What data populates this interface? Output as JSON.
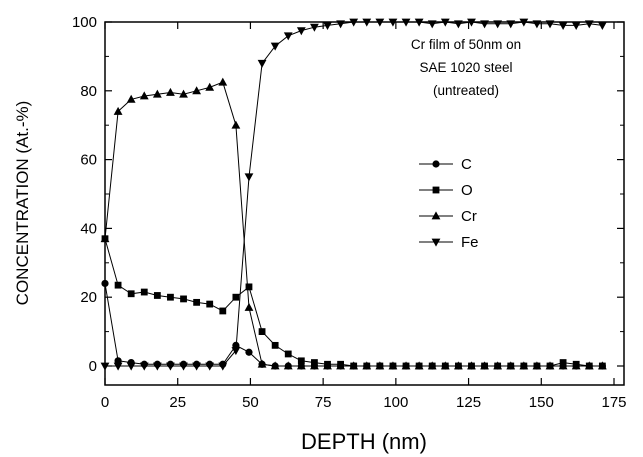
{
  "chart_data": {
    "type": "line",
    "xlabel": "DEPTH (nm)",
    "ylabel": "CONCENTRATION (At.-%)",
    "xlim": [
      0,
      175
    ],
    "ylim": [
      -5,
      100
    ],
    "xticks": [
      0,
      25,
      50,
      75,
      100,
      125,
      150,
      175
    ],
    "yticks": [
      0,
      20,
      40,
      60,
      80,
      100
    ],
    "annotation": [
      "Cr film of 50nm on",
      "SAE 1020 steel",
      "(untreated)"
    ],
    "legend_position": "center-right",
    "series": [
      {
        "name": "C",
        "marker": "circle",
        "x": [
          0,
          4.5,
          9,
          13.5,
          18,
          22.5,
          27,
          31.5,
          36,
          40.5,
          45,
          49.5,
          54,
          58.5,
          63,
          67.5,
          72,
          76.5,
          81,
          85.5,
          90,
          94.5,
          99,
          103.5,
          108,
          112.5,
          117,
          121.5,
          126,
          130.5,
          135,
          139.5,
          144,
          148.5,
          153,
          157.5,
          162,
          166.5,
          171
        ],
        "y": [
          24,
          1.5,
          1,
          0.5,
          0.5,
          0.5,
          0.5,
          0.5,
          0.5,
          0.5,
          6,
          4,
          0.5,
          0,
          0,
          0,
          0,
          0,
          0,
          0,
          0,
          0,
          0,
          0,
          0,
          0,
          0,
          0,
          0,
          0,
          0,
          0,
          0,
          0,
          0,
          0,
          0,
          0,
          0
        ]
      },
      {
        "name": "O",
        "marker": "square",
        "x": [
          0,
          4.5,
          9,
          13.5,
          18,
          22.5,
          27,
          31.5,
          36,
          40.5,
          45,
          49.5,
          54,
          58.5,
          63,
          67.5,
          72,
          76.5,
          81,
          85.5,
          90,
          94.5,
          99,
          103.5,
          108,
          112.5,
          117,
          121.5,
          126,
          130.5,
          135,
          139.5,
          144,
          148.5,
          153,
          157.5,
          162,
          166.5,
          171
        ],
        "y": [
          37,
          23.5,
          21,
          21.5,
          20.5,
          20,
          19.5,
          18.5,
          18,
          16,
          20,
          23,
          10,
          6,
          3.5,
          1.5,
          1,
          0.5,
          0.5,
          0,
          0,
          0,
          0,
          0,
          0,
          0,
          0,
          0,
          0,
          0,
          0,
          0,
          0,
          0,
          0,
          1,
          0.5,
          0,
          0
        ]
      },
      {
        "name": "Cr",
        "marker": "triangle-up",
        "x": [
          0,
          4.5,
          9,
          13.5,
          18,
          22.5,
          27,
          31.5,
          36,
          40.5,
          45,
          49.5,
          54,
          58.5,
          63,
          67.5,
          72,
          76.5,
          81,
          85.5,
          90,
          94.5,
          99,
          103.5,
          108,
          112.5,
          117,
          121.5,
          126,
          130.5,
          135,
          139.5,
          144,
          148.5,
          153,
          157.5,
          162,
          166.5,
          171
        ],
        "y": [
          37,
          74,
          77.5,
          78.5,
          79,
          79.5,
          79,
          80,
          81,
          82.5,
          70,
          17,
          0.5,
          0,
          0,
          0,
          0,
          0,
          0,
          0,
          0,
          0,
          0,
          0,
          0,
          0,
          0,
          0,
          0,
          0,
          0,
          0,
          0,
          0,
          0,
          0,
          0,
          0,
          0
        ]
      },
      {
        "name": "Fe",
        "marker": "triangle-down",
        "x": [
          0,
          4.5,
          9,
          13.5,
          18,
          22.5,
          27,
          31.5,
          36,
          40.5,
          45,
          49.5,
          54,
          58.5,
          63,
          67.5,
          72,
          76.5,
          81,
          85.5,
          90,
          94.5,
          99,
          103.5,
          108,
          112.5,
          117,
          121.5,
          126,
          130.5,
          135,
          139.5,
          144,
          148.5,
          153,
          157.5,
          162,
          166.5,
          171
        ],
        "y": [
          0,
          0,
          0,
          0,
          0,
          0,
          0,
          0,
          0,
          0,
          4.5,
          55,
          88,
          93,
          96,
          97.5,
          98.5,
          99,
          99.5,
          100,
          100,
          100,
          100,
          100,
          100,
          99.5,
          100,
          99.5,
          100,
          99.5,
          99.5,
          99.5,
          100,
          99.5,
          99.5,
          99,
          99,
          99.5,
          99
        ]
      }
    ]
  }
}
